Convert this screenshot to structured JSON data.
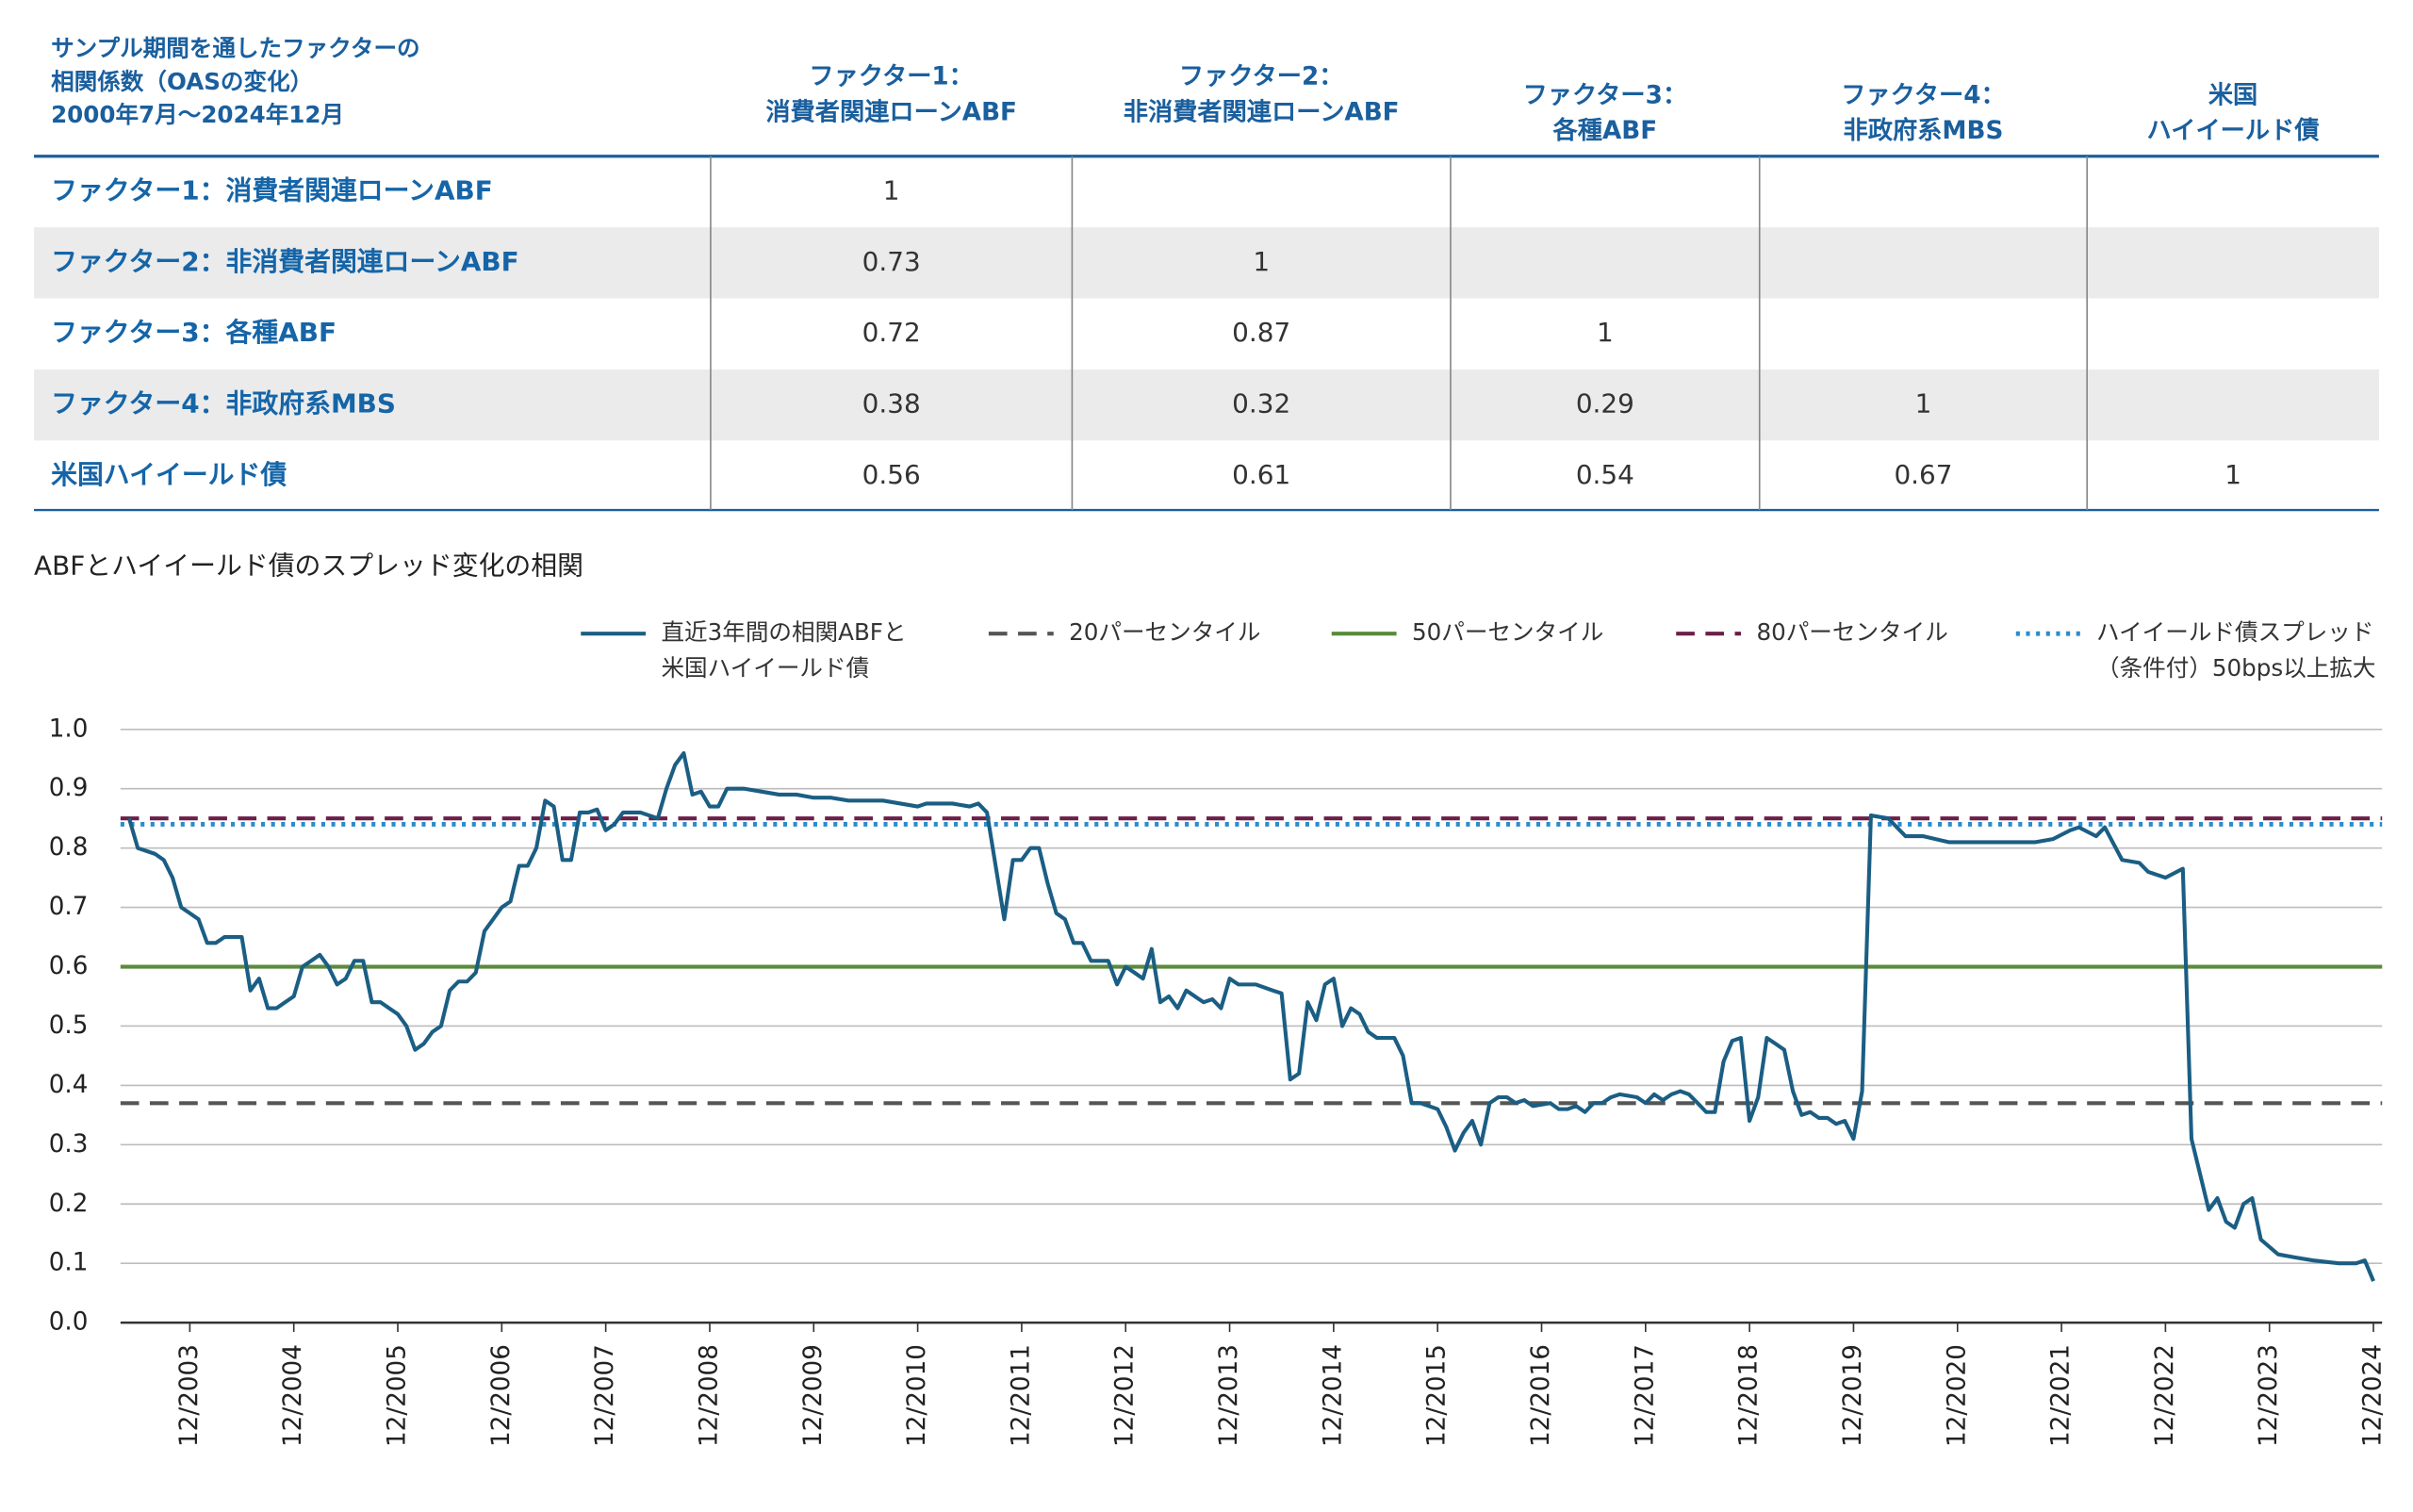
{
  "title": [
    "サンプル期間を通したファクターの",
    "相関係数（OASの変化）",
    "2000年7月～2024年12月"
  ],
  "table": {
    "columns": [
      [
        "ファクター1：",
        "消費者関連ローンABF"
      ],
      [
        "ファクター2：",
        "非消費者関連ローンABF"
      ],
      [
        "ファクター3：",
        "各種ABF"
      ],
      [
        "ファクター4：",
        "非政府系MBS"
      ],
      [
        "米国",
        "ハイイールド債"
      ]
    ],
    "rows": [
      {
        "label": "ファクター1：消費者関連ローンABF",
        "values": [
          1,
          null,
          null,
          null,
          null
        ]
      },
      {
        "label": "ファクター2：非消費者関連ローンABF",
        "values": [
          0.73,
          1,
          null,
          null,
          null
        ]
      },
      {
        "label": "ファクター3：各種ABF",
        "values": [
          0.72,
          0.87,
          1,
          null,
          null
        ]
      },
      {
        "label": "ファクター4：非政府系MBS",
        "values": [
          0.38,
          0.32,
          0.29,
          1,
          null
        ]
      },
      {
        "label": "米国ハイイールド債",
        "values": [
          0.56,
          0.61,
          0.54,
          0.67,
          1
        ]
      }
    ]
  },
  "chart_data": {
    "type": "line",
    "title": "ABFとハイイールド債のスプレッド変化の相関",
    "x": [
      "2003-05",
      "2003-06",
      "2003-08",
      "2003-09",
      "2003-10",
      "2003-11",
      "2003-12",
      "2004-01",
      "2004-02",
      "2004-03",
      "2004-04",
      "2004-06",
      "2004-07",
      "2004-08",
      "2004-09",
      "2004-10",
      "2004-11",
      "2004-12",
      "2005-01",
      "2005-02",
      "2005-03",
      "2005-04",
      "2005-05",
      "2005-06",
      "2005-07",
      "2005-08",
      "2005-09",
      "2005-10",
      "2005-11",
      "2005-12",
      "2006-01",
      "2006-02",
      "2006-03",
      "2006-04",
      "2006-05",
      "2006-06",
      "2006-07",
      "2006-08",
      "2006-09",
      "2006-10",
      "2006-11",
      "2006-12",
      "2007-01",
      "2007-02",
      "2007-03",
      "2007-04",
      "2007-05",
      "2007-06",
      "2007-07",
      "2007-08",
      "2007-09",
      "2007-10",
      "2007-11",
      "2007-12",
      "2008-01",
      "2008-02",
      "2008-04",
      "2008-05",
      "2008-06",
      "2008-07",
      "2008-08",
      "2008-09",
      "2008-10",
      "2008-11",
      "2008-12",
      "2009-01",
      "2009-02",
      "2009-04",
      "2009-06",
      "2009-08",
      "2009-10",
      "2009-12",
      "2010-02",
      "2010-04",
      "2010-06",
      "2010-08",
      "2010-10",
      "2010-12",
      "2011-01",
      "2011-04",
      "2011-06",
      "2011-07",
      "2011-08",
      "2011-09",
      "2011-10",
      "2011-11",
      "2011-12",
      "2012-01",
      "2012-02",
      "2012-03",
      "2012-04",
      "2012-05",
      "2012-06",
      "2012-07",
      "2012-08",
      "2012-10",
      "2012-11",
      "2012-12",
      "2013-01",
      "2013-02",
      "2013-03",
      "2013-04",
      "2013-05",
      "2013-06",
      "2013-07",
      "2013-09",
      "2013-10",
      "2013-11",
      "2013-12",
      "2014-01",
      "2014-03",
      "2014-05",
      "2014-06",
      "2014-07",
      "2014-08",
      "2014-09",
      "2014-10",
      "2014-11",
      "2014-12",
      "2015-01",
      "2015-02",
      "2015-03",
      "2015-04",
      "2015-05",
      "2015-07",
      "2015-08",
      "2015-09",
      "2015-10",
      "2015-12",
      "2016-01",
      "2016-02",
      "2016-03",
      "2016-04",
      "2016-05",
      "2016-06",
      "2016-07",
      "2016-08",
      "2016-09",
      "2016-10",
      "2016-11",
      "2017-01",
      "2017-02",
      "2017-03",
      "2017-04",
      "2017-05",
      "2017-06",
      "2017-07",
      "2017-08",
      "2017-09",
      "2017-11",
      "2017-12",
      "2018-01",
      "2018-02",
      "2018-03",
      "2018-04",
      "2018-05",
      "2018-06",
      "2018-07",
      "2018-08",
      "2018-09",
      "2018-10",
      "2018-11",
      "2018-12",
      "2019-01",
      "2019-02",
      "2019-03",
      "2019-04",
      "2019-05",
      "2019-06",
      "2019-07",
      "2019-08",
      "2019-09",
      "2019-10",
      "2019-11",
      "2019-12",
      "2020-01",
      "2020-02",
      "2020-04",
      "2020-06",
      "2020-08",
      "2020-11",
      "2021-02",
      "2021-06",
      "2021-09",
      "2021-11",
      "2022-01",
      "2022-02",
      "2022-04",
      "2022-05",
      "2022-07",
      "2022-09",
      "2022-10",
      "2022-12",
      "2023-02",
      "2023-03",
      "2023-04",
      "2023-05",
      "2023-06",
      "2023-07",
      "2023-08",
      "2023-09",
      "2023-10",
      "2023-11",
      "2024-01",
      "2024-03",
      "2024-05",
      "2024-08",
      "2024-10",
      "2024-11",
      "2024-12"
    ],
    "series": [
      {
        "name": [
          "直近3年間の相関ABFと",
          "米国ハイイールド債"
        ],
        "color": "#1b5e84",
        "values": [
          0.85,
          0.8,
          0.79,
          0.78,
          0.75,
          0.7,
          0.69,
          0.68,
          0.64,
          0.64,
          0.65,
          0.65,
          0.56,
          0.58,
          0.53,
          0.53,
          0.54,
          0.55,
          0.6,
          0.61,
          0.62,
          0.6,
          0.57,
          0.58,
          0.61,
          0.61,
          0.54,
          0.54,
          0.53,
          0.52,
          0.5,
          0.46,
          0.47,
          0.49,
          0.5,
          0.56,
          0.575,
          0.575,
          0.59,
          0.66,
          0.68,
          0.7,
          0.71,
          0.77,
          0.77,
          0.8,
          0.88,
          0.87,
          0.78,
          0.78,
          0.86,
          0.86,
          0.865,
          0.83,
          0.84,
          0.86,
          0.86,
          0.855,
          0.85,
          0.9,
          0.94,
          0.96,
          0.89,
          0.895,
          0.87,
          0.87,
          0.9,
          0.9,
          0.895,
          0.89,
          0.89,
          0.885,
          0.885,
          0.88,
          0.88,
          0.88,
          0.875,
          0.87,
          0.875,
          0.875,
          0.87,
          0.875,
          0.86,
          0.77,
          0.68,
          0.78,
          0.78,
          0.8,
          0.8,
          0.74,
          0.69,
          0.68,
          0.64,
          0.64,
          0.61,
          0.61,
          0.57,
          0.6,
          0.59,
          0.58,
          0.63,
          0.54,
          0.55,
          0.53,
          0.56,
          0.54,
          0.545,
          0.53,
          0.58,
          0.57,
          0.57,
          0.56,
          0.555,
          0.41,
          0.42,
          0.54,
          0.51,
          0.57,
          0.58,
          0.5,
          0.53,
          0.52,
          0.49,
          0.48,
          0.48,
          0.45,
          0.37,
          0.37,
          0.36,
          0.33,
          0.29,
          0.32,
          0.34,
          0.3,
          0.37,
          0.38,
          0.38,
          0.37,
          0.375,
          0.365,
          0.37,
          0.36,
          0.36,
          0.365,
          0.355,
          0.37,
          0.37,
          0.38,
          0.385,
          0.38,
          0.37,
          0.385,
          0.375,
          0.385,
          0.39,
          0.385,
          0.37,
          0.355,
          0.355,
          0.44,
          0.475,
          0.48,
          0.34,
          0.38,
          0.48,
          0.47,
          0.46,
          0.39,
          0.35,
          0.355,
          0.345,
          0.345,
          0.335,
          0.34,
          0.31,
          0.39,
          0.855,
          0.85,
          0.82,
          0.82,
          0.81,
          0.81,
          0.81,
          0.81,
          0.815,
          0.83,
          0.835,
          0.82,
          0.835,
          0.78,
          0.775,
          0.76,
          0.75,
          0.765,
          0.31,
          0.25,
          0.19,
          0.21,
          0.17,
          0.16,
          0.2,
          0.21,
          0.14,
          0.115,
          0.11,
          0.105,
          0.1,
          0.1,
          0.105,
          0.07
        ]
      }
    ],
    "reference_lines": [
      {
        "name": "20パーセンタイル",
        "color": "#555555",
        "value": 0.37,
        "style": "dashed"
      },
      {
        "name": "50パーセンタイル",
        "color": "#5a8a3a",
        "value": 0.6,
        "style": "solid"
      },
      {
        "name": "80パーセンタイル",
        "color": "#6b1f48",
        "value": 0.85,
        "style": "dashed"
      },
      {
        "name": [
          "ハイイールド債スプレッド",
          "（条件付）50bps以上拡大"
        ],
        "color": "#2a8ccc",
        "value": 0.84,
        "style": "dotted"
      }
    ],
    "xlim": [
      "2003-04",
      "2025-01"
    ],
    "xticks": [
      {
        "value": "2003-12",
        "label": "12/2003"
      },
      {
        "value": "2004-12",
        "label": "12/2004"
      },
      {
        "value": "2005-12",
        "label": "12/2005"
      },
      {
        "value": "2006-12",
        "label": "12/2006"
      },
      {
        "value": "2007-12",
        "label": "12/2007"
      },
      {
        "value": "2008-12",
        "label": "12/2008"
      },
      {
        "value": "2009-12",
        "label": "12/2009"
      },
      {
        "value": "2010-12",
        "label": "12/2010"
      },
      {
        "value": "2011-12",
        "label": "12/2011"
      },
      {
        "value": "2012-12",
        "label": "12/2012"
      },
      {
        "value": "2013-12",
        "label": "12/2013"
      },
      {
        "value": "2014-12",
        "label": "12/2014"
      },
      {
        "value": "2015-12",
        "label": "12/2015"
      },
      {
        "value": "2016-12",
        "label": "12/2016"
      },
      {
        "value": "2017-12",
        "label": "12/2017"
      },
      {
        "value": "2018-12",
        "label": "12/2018"
      },
      {
        "value": "2019-12",
        "label": "12/2019"
      },
      {
        "value": "2020-12",
        "label": "12/2020"
      },
      {
        "value": "2021-12",
        "label": "12/2021"
      },
      {
        "value": "2022-12",
        "label": "12/2022"
      },
      {
        "value": "2023-12",
        "label": "12/2023"
      },
      {
        "value": "2024-12",
        "label": "12/2024"
      }
    ],
    "ylim": [
      0,
      1
    ],
    "yticks": [
      {
        "value": 0,
        "label": "0.0"
      },
      0.1,
      0.2,
      0.3,
      0.4,
      0.5,
      0.6,
      0.7,
      0.8,
      0.9,
      {
        "value": 1,
        "label": "1.0"
      }
    ],
    "grid": true
  }
}
